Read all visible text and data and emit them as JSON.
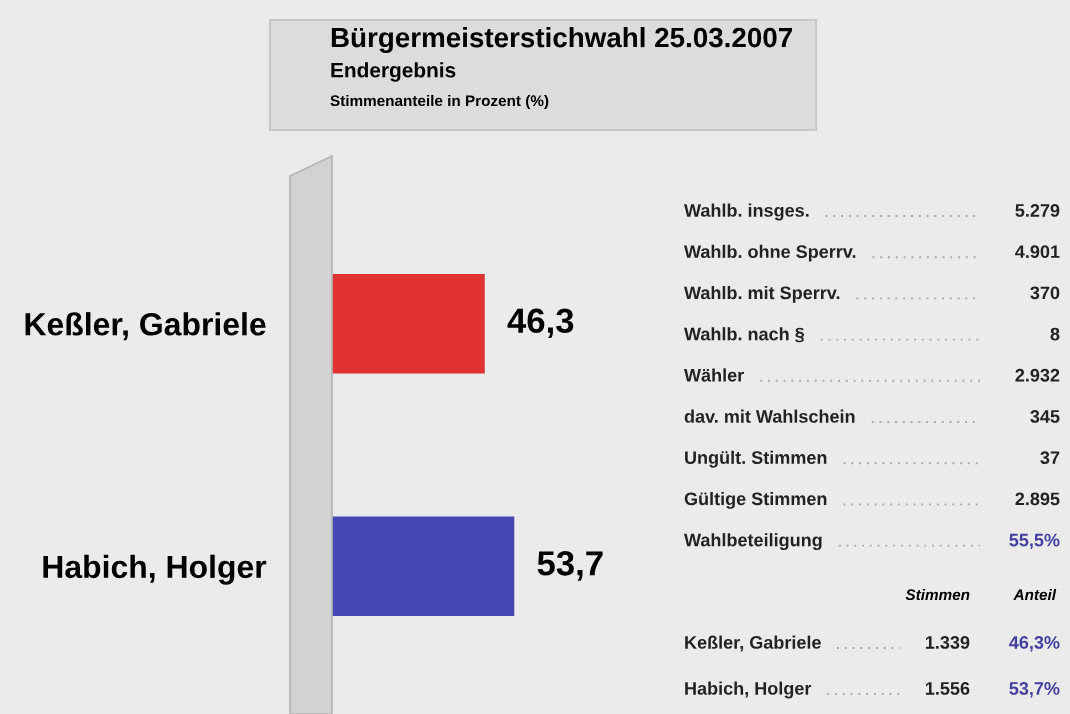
{
  "chart_data": {
    "type": "bar",
    "orientation": "horizontal",
    "title": "Bürgermeisterstichwahl 25.03.2007",
    "subtitle": "Endergebnis",
    "categories": [
      "Keßler, Gabriele",
      "Habich, Holger"
    ],
    "values": [
      46.3,
      53.7
    ],
    "colors": [
      "#e03232",
      "#4646b4"
    ],
    "value_labels": [
      "46,3",
      "53,7"
    ],
    "tick_labels": "y",
    "annotations": [
      "Stimmenanteile in Prozent (%)",
      "Wahlb. insges.",
      "5.279",
      "Wahlb. ohne Sperrv.",
      "4.901",
      "Wahlb. mit Sperrv.",
      "370",
      "Wahlb. nach §",
      "8",
      "Wähler",
      "2.932",
      "dav. mit Wahlschein",
      "345",
      "Ungült. Stimmen",
      "37",
      "Gültige Stimmen",
      "2.895",
      "Wahlbeteiligung",
      "55,5%",
      "Stimmen",
      "Anteil",
      "Keßler, Gabriele",
      "1.339",
      "46,3%",
      "Habich, Holger",
      "1.556",
      "53,7%"
    ]
  }
}
